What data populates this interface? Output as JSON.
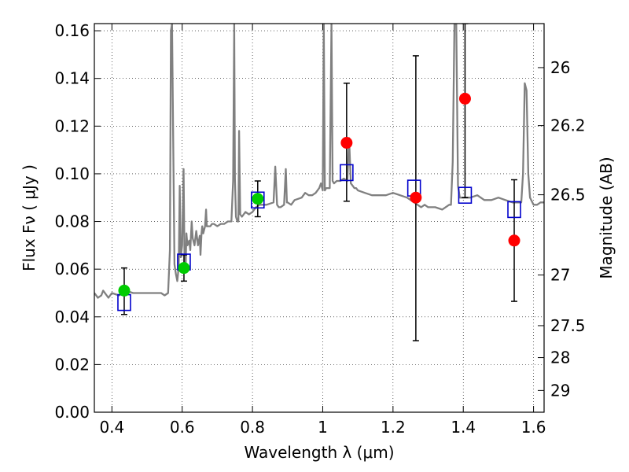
{
  "chart_data": {
    "type": "scatter",
    "title": "",
    "xlabel": "Wavelength  λ (μm)",
    "ylabel": "Flux  Fν  ( μJy )",
    "ylabel_right": "Magnitude (AB)",
    "xlim": [
      0.35,
      1.63
    ],
    "ylim": [
      0.0,
      0.163
    ],
    "grid": true,
    "x_ticks": [
      {
        "value": 0.4,
        "label": "0.4"
      },
      {
        "value": 0.6,
        "label": "0.6"
      },
      {
        "value": 0.8,
        "label": "0.8"
      },
      {
        "value": 1.0,
        "label": "1"
      },
      {
        "value": 1.2,
        "label": "1.2"
      },
      {
        "value": 1.4,
        "label": "1.4"
      },
      {
        "value": 1.6,
        "label": "1.6"
      }
    ],
    "y_ticks": [
      {
        "value": 0.0,
        "label": "0.00"
      },
      {
        "value": 0.02,
        "label": "0.02"
      },
      {
        "value": 0.04,
        "label": "0.04"
      },
      {
        "value": 0.06,
        "label": "0.06"
      },
      {
        "value": 0.08,
        "label": "0.08"
      },
      {
        "value": 0.1,
        "label": "0.10"
      },
      {
        "value": 0.12,
        "label": "0.12"
      },
      {
        "value": 0.14,
        "label": "0.14"
      },
      {
        "value": 0.16,
        "label": "0.16"
      }
    ],
    "mag_ticks": [
      {
        "mag": 26,
        "label": "26"
      },
      {
        "mag": 26.2,
        "label": "26.2"
      },
      {
        "mag": 26.5,
        "label": "26.5"
      },
      {
        "mag": 27,
        "label": "27"
      },
      {
        "mag": 27.5,
        "label": "27.5"
      },
      {
        "mag": 28,
        "label": "28"
      },
      {
        "mag": 29,
        "label": "29"
      }
    ],
    "series": [
      {
        "kind": "spectrum",
        "color": "#808080",
        "x": [
          0.35,
          0.36,
          0.37,
          0.375,
          0.39,
          0.4,
          0.42,
          0.44,
          0.46,
          0.48,
          0.5,
          0.52,
          0.54,
          0.55,
          0.56,
          0.565,
          0.568,
          0.571,
          0.574,
          0.578,
          0.582,
          0.586,
          0.59,
          0.593,
          0.596,
          0.6,
          0.604,
          0.607,
          0.61,
          0.612,
          0.615,
          0.62,
          0.623,
          0.627,
          0.63,
          0.635,
          0.64,
          0.645,
          0.65,
          0.652,
          0.655,
          0.657,
          0.66,
          0.665,
          0.668,
          0.67,
          0.675,
          0.68,
          0.685,
          0.69,
          0.7,
          0.71,
          0.72,
          0.73,
          0.74,
          0.745,
          0.748,
          0.75,
          0.753,
          0.757,
          0.76,
          0.762,
          0.765,
          0.77,
          0.78,
          0.79,
          0.8,
          0.81,
          0.82,
          0.83,
          0.84,
          0.86,
          0.865,
          0.87,
          0.875,
          0.88,
          0.89,
          0.895,
          0.898,
          0.9,
          0.91,
          0.92,
          0.94,
          0.95,
          0.96,
          0.97,
          0.98,
          0.99,
          0.995,
          1.0,
          1.003,
          1.006,
          1.01,
          1.02,
          1.025,
          1.028,
          1.032,
          1.04,
          1.05,
          1.06,
          1.07,
          1.075,
          1.08,
          1.085,
          1.09,
          1.095,
          1.1,
          1.12,
          1.14,
          1.16,
          1.18,
          1.2,
          1.22,
          1.24,
          1.26,
          1.27,
          1.28,
          1.29,
          1.3,
          1.32,
          1.34,
          1.36,
          1.365,
          1.37,
          1.375,
          1.38,
          1.385,
          1.39,
          1.4,
          1.42,
          1.44,
          1.46,
          1.48,
          1.5,
          1.52,
          1.54,
          1.56,
          1.565,
          1.57,
          1.575,
          1.58,
          1.585,
          1.59,
          1.6,
          1.61,
          1.62,
          1.63
        ],
        "y": [
          0.05,
          0.048,
          0.049,
          0.051,
          0.048,
          0.05,
          0.049,
          0.051,
          0.05,
          0.05,
          0.05,
          0.05,
          0.05,
          0.049,
          0.05,
          0.068,
          0.16,
          0.163,
          0.12,
          0.062,
          0.058,
          0.055,
          0.061,
          0.095,
          0.065,
          0.07,
          0.102,
          0.06,
          0.062,
          0.075,
          0.07,
          0.072,
          0.068,
          0.08,
          0.073,
          0.07,
          0.076,
          0.07,
          0.074,
          0.066,
          0.075,
          0.078,
          0.075,
          0.078,
          0.085,
          0.078,
          0.078,
          0.078,
          0.079,
          0.079,
          0.078,
          0.079,
          0.079,
          0.08,
          0.08,
          0.097,
          0.163,
          0.098,
          0.082,
          0.08,
          0.08,
          0.118,
          0.083,
          0.082,
          0.084,
          0.083,
          0.084,
          0.086,
          0.087,
          0.087,
          0.087,
          0.088,
          0.103,
          0.087,
          0.086,
          0.086,
          0.087,
          0.102,
          0.088,
          0.088,
          0.087,
          0.089,
          0.09,
          0.092,
          0.091,
          0.091,
          0.092,
          0.094,
          0.096,
          0.093,
          0.163,
          0.093,
          0.094,
          0.094,
          0.163,
          0.097,
          0.096,
          0.097,
          0.097,
          0.098,
          0.097,
          0.115,
          0.096,
          0.095,
          0.094,
          0.094,
          0.093,
          0.092,
          0.091,
          0.091,
          0.091,
          0.092,
          0.091,
          0.09,
          0.088,
          0.087,
          0.086,
          0.087,
          0.086,
          0.086,
          0.085,
          0.087,
          0.087,
          0.105,
          0.163,
          0.163,
          0.095,
          0.09,
          0.09,
          0.09,
          0.091,
          0.089,
          0.089,
          0.09,
          0.089,
          0.088,
          0.088,
          0.088,
          0.1,
          0.138,
          0.135,
          0.1,
          0.09,
          0.087,
          0.087,
          0.088,
          0.088
        ]
      },
      {
        "kind": "model_squares",
        "color": "#0000cc",
        "x": [
          0.435,
          0.605,
          0.815,
          1.068,
          1.26,
          1.405,
          1.545
        ],
        "y": [
          0.046,
          0.063,
          0.089,
          0.1005,
          0.094,
          0.091,
          0.085
        ]
      },
      {
        "kind": "points_green",
        "color": "#00cc00",
        "x": [
          0.435,
          0.605,
          0.815
        ],
        "y": [
          0.051,
          0.0605,
          0.0895
        ],
        "yerr_low": [
          0.041,
          0.055,
          0.082
        ],
        "yerr_high": [
          0.0605,
          0.066,
          0.097
        ]
      },
      {
        "kind": "points_red",
        "color": "#ff0000",
        "x": [
          1.068,
          1.265,
          1.405,
          1.545
        ],
        "y": [
          0.113,
          0.09,
          0.1315,
          0.072
        ],
        "yerr_low": [
          0.0885,
          0.03,
          0.09,
          0.0465
        ],
        "yerr_high": [
          0.138,
          0.1495,
          0.163,
          0.0975
        ]
      }
    ]
  }
}
